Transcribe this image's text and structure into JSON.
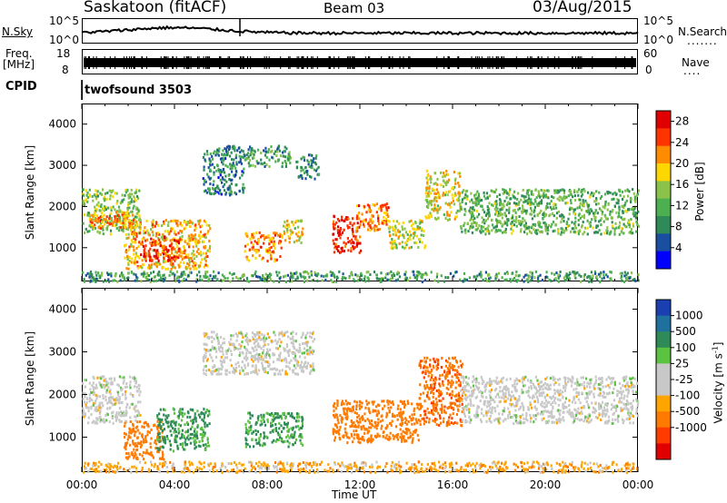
{
  "header": {
    "station": "Saskatoon (fitACF)",
    "beam": "Beam 03",
    "date": "03/Aug/2015"
  },
  "strip": {
    "nsky_label": "N.Sky",
    "nsky_ticks": [
      "10^5",
      "10^0"
    ],
    "nsearch_label": "N.Search",
    "freq_label": "Freq.",
    "freq_unit": "[MHz]",
    "freq_ticks": [
      "18",
      "8"
    ],
    "nave_ticks": [
      "60",
      "0"
    ],
    "nave_label": "Nave",
    "cpid_label": "CPID",
    "cpid_value": "twofsound 3503",
    "noise_ticks_right": [
      "10^5",
      "10^0"
    ]
  },
  "colors": {
    "power_scale": [
      "#0000ff",
      "#1a4fa0",
      "#2e8b57",
      "#4caf50",
      "#8bc34a",
      "#ffd700",
      "#ff8c00",
      "#ff3300",
      "#e00000"
    ],
    "velocity_scale": [
      "#1a3fb0",
      "#1f6f9f",
      "#2e8b57",
      "#5cc241",
      "#c8c8c8",
      "#c8c8c8",
      "#ffa500",
      "#ff7a00",
      "#ff3b00",
      "#e00000"
    ]
  },
  "chart_data": [
    {
      "type": "heatmap",
      "name": "power",
      "xlabel": "Time UT",
      "ylabel": "Slant Range [km]",
      "xlim": [
        0,
        24
      ],
      "ylim": [
        180,
        4500
      ],
      "xticks": [
        "00:00",
        "04:00",
        "08:00",
        "12:00",
        "16:00",
        "20:00",
        "00:00"
      ],
      "yticks": [
        1000,
        2000,
        3000,
        4000
      ],
      "colorbar": {
        "label": "Power [dB]",
        "ticks": [
          4,
          8,
          12,
          16,
          20,
          24,
          28
        ],
        "range": [
          0,
          30
        ]
      },
      "bands": [
        {
          "t0": 0.0,
          "t1": 2.5,
          "r0": 1350,
          "r1": 2450,
          "level": 14
        },
        {
          "t0": 0.3,
          "t1": 2.2,
          "r0": 1500,
          "r1": 1900,
          "level": 22
        },
        {
          "t0": 1.8,
          "t1": 5.5,
          "r0": 500,
          "r1": 1700,
          "level": 20
        },
        {
          "t0": 2.5,
          "t1": 4.2,
          "r0": 700,
          "r1": 1300,
          "level": 26
        },
        {
          "t0": 5.2,
          "t1": 7.0,
          "r0": 2300,
          "r1": 3500,
          "level": 8
        },
        {
          "t0": 7.0,
          "t1": 9.0,
          "r0": 3000,
          "r1": 3500,
          "level": 10
        },
        {
          "t0": 9.2,
          "t1": 10.2,
          "r0": 2700,
          "r1": 3300,
          "level": 8
        },
        {
          "t0": 7.0,
          "t1": 8.6,
          "r0": 700,
          "r1": 1400,
          "level": 22
        },
        {
          "t0": 8.6,
          "t1": 9.5,
          "r0": 1100,
          "r1": 1700,
          "level": 18
        },
        {
          "t0": 10.8,
          "t1": 12.0,
          "r0": 900,
          "r1": 1800,
          "level": 27
        },
        {
          "t0": 11.8,
          "t1": 13.2,
          "r0": 1400,
          "r1": 2100,
          "level": 22
        },
        {
          "t0": 13.2,
          "t1": 14.8,
          "r0": 1000,
          "r1": 1700,
          "level": 16
        },
        {
          "t0": 14.8,
          "t1": 16.3,
          "r0": 1700,
          "r1": 2900,
          "level": 18
        },
        {
          "t0": 16.3,
          "t1": 24.0,
          "r0": 1350,
          "r1": 2450,
          "level": 12
        },
        {
          "t0": 0.0,
          "t1": 24.0,
          "r0": 200,
          "r1": 450,
          "level": 10
        }
      ]
    },
    {
      "type": "heatmap",
      "name": "velocity",
      "xlabel": "Time UT",
      "ylabel": "Slant Range [km]",
      "xlim": [
        0,
        24
      ],
      "ylim": [
        180,
        4500
      ],
      "xticks": [
        "00:00",
        "04:00",
        "08:00",
        "12:00",
        "16:00",
        "20:00",
        "00:00"
      ],
      "yticks": [
        1000,
        2000,
        3000,
        4000
      ],
      "colorbar": {
        "label": "Velocity [m s^-1]",
        "ticks": [
          "1000",
          "500",
          "100",
          "25",
          "-25",
          "-100",
          "-500",
          "-1000"
        ]
      },
      "bands": [
        {
          "t0": 0.0,
          "t1": 2.5,
          "r0": 1350,
          "r1": 2450,
          "vel": 0
        },
        {
          "t0": 1.8,
          "t1": 3.5,
          "r0": 500,
          "r1": 1400,
          "vel": -300
        },
        {
          "t0": 3.2,
          "t1": 5.5,
          "r0": 700,
          "r1": 1700,
          "vel": 150
        },
        {
          "t0": 5.2,
          "t1": 10.0,
          "r0": 2500,
          "r1": 3500,
          "vel": 0
        },
        {
          "t0": 7.0,
          "t1": 9.5,
          "r0": 800,
          "r1": 1600,
          "vel": 120
        },
        {
          "t0": 10.8,
          "t1": 14.5,
          "r0": 900,
          "r1": 1900,
          "vel": -300
        },
        {
          "t0": 14.5,
          "t1": 16.4,
          "r0": 1300,
          "r1": 2900,
          "vel": -400
        },
        {
          "t0": 16.3,
          "t1": 24.0,
          "r0": 1350,
          "r1": 2450,
          "vel": 0
        },
        {
          "t0": 0.0,
          "t1": 24.0,
          "r0": 200,
          "r1": 450,
          "vel": -60
        }
      ]
    }
  ]
}
